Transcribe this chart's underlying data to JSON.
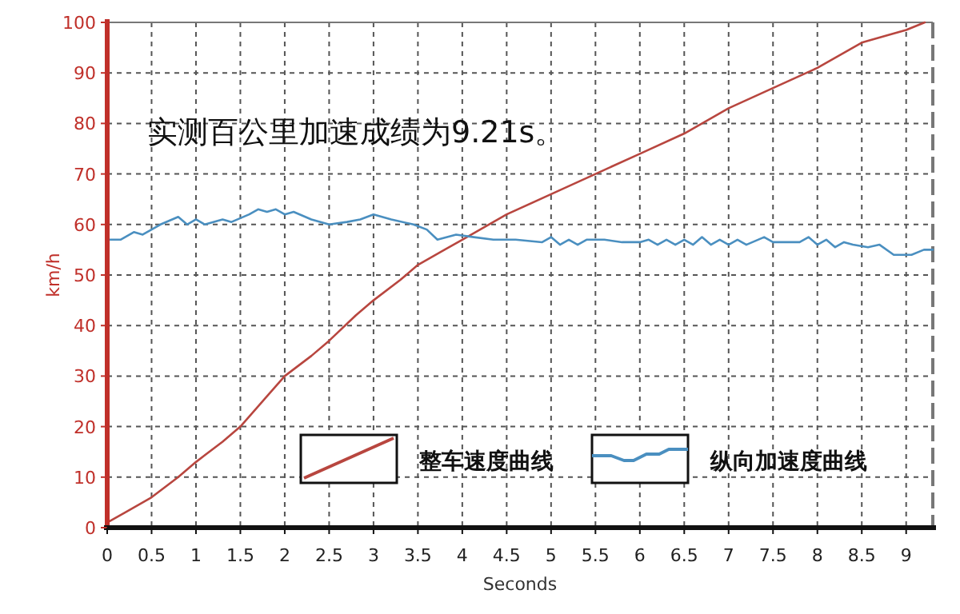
{
  "chart_data": {
    "type": "line",
    "xlabel": "Seconds",
    "ylabel": "km/h",
    "xlim": [
      0,
      9.3
    ],
    "ylim": [
      0,
      100
    ],
    "xticks": [
      0,
      0.5,
      1,
      1.5,
      2,
      2.5,
      3,
      3.5,
      4,
      4.5,
      5,
      5.5,
      6,
      6.5,
      7,
      7.5,
      8,
      8.5,
      9
    ],
    "yticks": [
      0,
      10,
      20,
      30,
      40,
      50,
      60,
      70,
      80,
      90,
      100
    ],
    "grid": true,
    "legend": "bottom",
    "marker": "none",
    "line_style": "solid",
    "annotations": [
      "实测百公里加速成绩为9.21s。"
    ],
    "series": [
      {
        "name": "整车速度曲线",
        "color": "#b8463f",
        "x": [
          0,
          0.2,
          0.5,
          0.8,
          1,
          1.3,
          1.5,
          1.8,
          2,
          2.3,
          2.5,
          2.8,
          3,
          3.3,
          3.5,
          3.8,
          4,
          4.5,
          5,
          5.5,
          6,
          6.5,
          7,
          7.5,
          8,
          8.5,
          8.8,
          9,
          9.21
        ],
        "values": [
          1,
          3,
          6,
          10,
          13,
          17,
          20,
          26,
          30,
          34,
          37,
          42,
          45,
          49,
          52,
          55,
          57,
          62,
          66,
          70,
          74,
          78,
          83,
          87,
          91,
          96,
          97.5,
          98.5,
          100
        ]
      },
      {
        "name": "纵向加速度曲线",
        "color": "#4a8fc0",
        "x": [
          0,
          0.15,
          0.3,
          0.4,
          0.6,
          0.8,
          0.9,
          1.0,
          1.1,
          1.3,
          1.4,
          1.6,
          1.7,
          1.8,
          1.9,
          2.0,
          2.1,
          2.3,
          2.5,
          2.7,
          2.85,
          3.0,
          3.2,
          3.45,
          3.6,
          3.72,
          3.93,
          4.13,
          4.35,
          4.6,
          4.9,
          5.0,
          5.1,
          5.2,
          5.3,
          5.4,
          5.6,
          5.8,
          6.0,
          6.1,
          6.2,
          6.3,
          6.4,
          6.5,
          6.6,
          6.7,
          6.8,
          6.9,
          7.0,
          7.1,
          7.2,
          7.4,
          7.5,
          7.8,
          7.9,
          8.0,
          8.1,
          8.2,
          8.3,
          8.4,
          8.57,
          8.7,
          8.86,
          9.06,
          9.2,
          9.3
        ],
        "values": [
          57,
          57,
          58.5,
          58,
          60,
          61.5,
          60,
          61,
          60,
          61,
          60.5,
          62,
          63,
          62.5,
          63,
          62,
          62.5,
          61,
          60,
          60.5,
          61,
          62,
          61,
          60,
          59,
          57,
          58,
          57.5,
          57,
          57,
          56.5,
          57.5,
          56,
          57,
          56,
          57,
          57,
          56.5,
          56.5,
          57,
          56,
          57,
          56,
          57,
          56,
          57.5,
          56,
          57,
          56,
          57,
          56,
          57.5,
          56.5,
          56.5,
          57.5,
          56,
          57,
          55.5,
          56.5,
          56,
          55.5,
          56,
          54,
          54,
          55,
          55
        ]
      }
    ]
  }
}
